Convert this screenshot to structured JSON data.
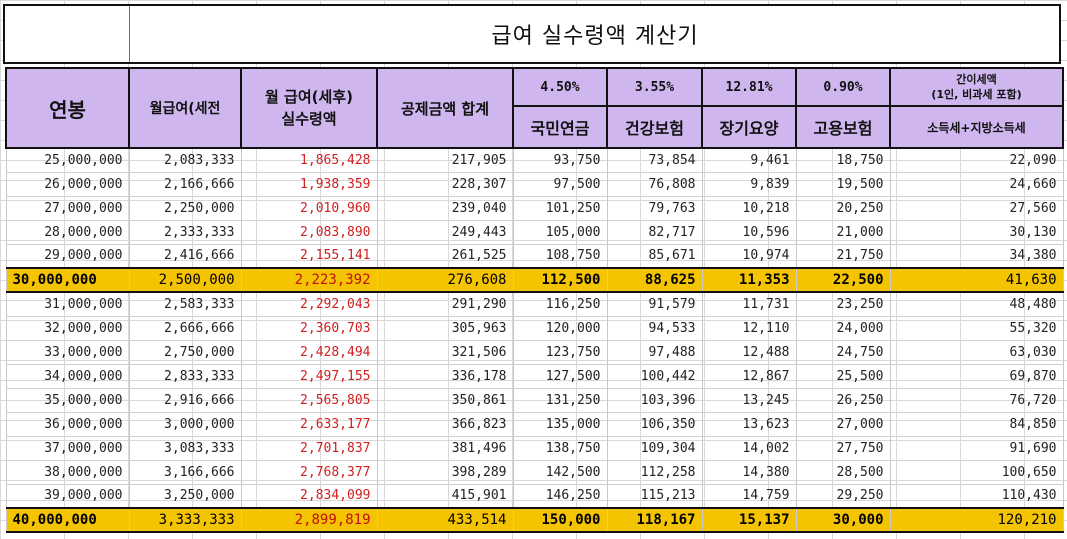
{
  "title": "급여 실수령액 계산기",
  "headers": {
    "annual": "연봉",
    "monthly_pre": "월급여(세전",
    "monthly_post_line1": "월 급여(세후)",
    "monthly_post_line2": "실수령액",
    "deduction_total": "공제금액 합계",
    "national_pension_rate": "4.50%",
    "health_rate": "3.55%",
    "longterm_rate": "12.81%",
    "employment_rate": "0.90%",
    "tax_line1": "간이세액",
    "tax_line2": "(1인, 비과세 포함)",
    "national_pension": "국민연금",
    "health": "건강보험",
    "longterm": "장기요양",
    "employment": "고용보험",
    "income_tax": "소득세+지방소득세"
  },
  "rows": [
    {
      "annual": "25,000,000",
      "pre": "2,083,333",
      "net": "1,865,428",
      "deduct": "217,905",
      "np": "93,750",
      "hi": "73,854",
      "lt": "9,461",
      "ei": "18,750",
      "tax": "22,090",
      "highlight": false
    },
    {
      "annual": "26,000,000",
      "pre": "2,166,666",
      "net": "1,938,359",
      "deduct": "228,307",
      "np": "97,500",
      "hi": "76,808",
      "lt": "9,839",
      "ei": "19,500",
      "tax": "24,660",
      "highlight": false
    },
    {
      "annual": "27,000,000",
      "pre": "2,250,000",
      "net": "2,010,960",
      "deduct": "239,040",
      "np": "101,250",
      "hi": "79,763",
      "lt": "10,218",
      "ei": "20,250",
      "tax": "27,560",
      "highlight": false
    },
    {
      "annual": "28,000,000",
      "pre": "2,333,333",
      "net": "2,083,890",
      "deduct": "249,443",
      "np": "105,000",
      "hi": "82,717",
      "lt": "10,596",
      "ei": "21,000",
      "tax": "30,130",
      "highlight": false
    },
    {
      "annual": "29,000,000",
      "pre": "2,416,666",
      "net": "2,155,141",
      "deduct": "261,525",
      "np": "108,750",
      "hi": "85,671",
      "lt": "10,974",
      "ei": "21,750",
      "tax": "34,380",
      "highlight": false
    },
    {
      "annual": "30,000,000",
      "pre": "2,500,000",
      "net": "2,223,392",
      "deduct": "276,608",
      "np": "112,500",
      "hi": "88,625",
      "lt": "11,353",
      "ei": "22,500",
      "tax": "41,630",
      "highlight": true
    },
    {
      "annual": "31,000,000",
      "pre": "2,583,333",
      "net": "2,292,043",
      "deduct": "291,290",
      "np": "116,250",
      "hi": "91,579",
      "lt": "11,731",
      "ei": "23,250",
      "tax": "48,480",
      "highlight": false
    },
    {
      "annual": "32,000,000",
      "pre": "2,666,666",
      "net": "2,360,703",
      "deduct": "305,963",
      "np": "120,000",
      "hi": "94,533",
      "lt": "12,110",
      "ei": "24,000",
      "tax": "55,320",
      "highlight": false
    },
    {
      "annual": "33,000,000",
      "pre": "2,750,000",
      "net": "2,428,494",
      "deduct": "321,506",
      "np": "123,750",
      "hi": "97,488",
      "lt": "12,488",
      "ei": "24,750",
      "tax": "63,030",
      "highlight": false
    },
    {
      "annual": "34,000,000",
      "pre": "2,833,333",
      "net": "2,497,155",
      "deduct": "336,178",
      "np": "127,500",
      "hi": "100,442",
      "lt": "12,867",
      "ei": "25,500",
      "tax": "69,870",
      "highlight": false
    },
    {
      "annual": "35,000,000",
      "pre": "2,916,666",
      "net": "2,565,805",
      "deduct": "350,861",
      "np": "131,250",
      "hi": "103,396",
      "lt": "13,245",
      "ei": "26,250",
      "tax": "76,720",
      "highlight": false
    },
    {
      "annual": "36,000,000",
      "pre": "3,000,000",
      "net": "2,633,177",
      "deduct": "366,823",
      "np": "135,000",
      "hi": "106,350",
      "lt": "13,623",
      "ei": "27,000",
      "tax": "84,850",
      "highlight": false
    },
    {
      "annual": "37,000,000",
      "pre": "3,083,333",
      "net": "2,701,837",
      "deduct": "381,496",
      "np": "138,750",
      "hi": "109,304",
      "lt": "14,002",
      "ei": "27,750",
      "tax": "91,690",
      "highlight": false
    },
    {
      "annual": "38,000,000",
      "pre": "3,166,666",
      "net": "2,768,377",
      "deduct": "398,289",
      "np": "142,500",
      "hi": "112,258",
      "lt": "14,380",
      "ei": "28,500",
      "tax": "100,650",
      "highlight": false
    },
    {
      "annual": "39,000,000",
      "pre": "3,250,000",
      "net": "2,834,099",
      "deduct": "415,901",
      "np": "146,250",
      "hi": "115,213",
      "lt": "14,759",
      "ei": "29,250",
      "tax": "110,430",
      "highlight": false
    },
    {
      "annual": "40,000,000",
      "pre": "3,333,333",
      "net": "2,899,819",
      "deduct": "433,514",
      "np": "150,000",
      "hi": "118,167",
      "lt": "15,137",
      "ei": "30,000",
      "tax": "120,210",
      "highlight": true
    }
  ]
}
